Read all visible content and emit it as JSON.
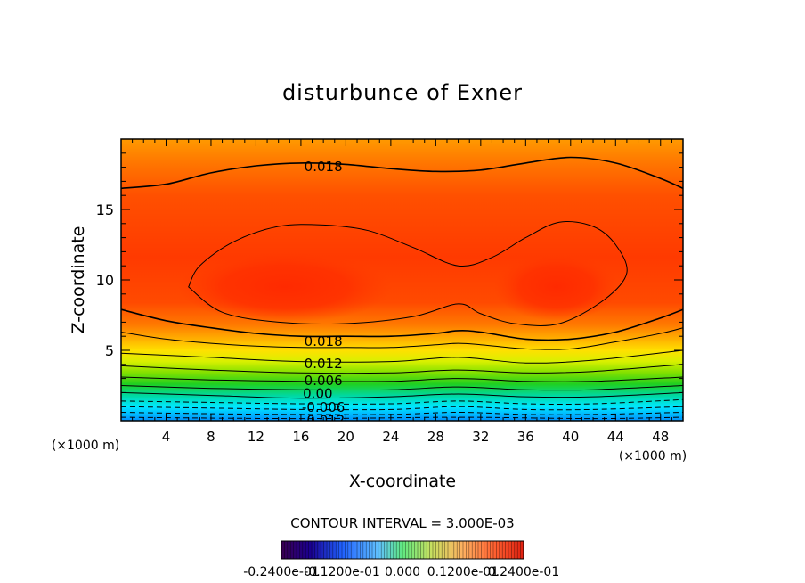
{
  "chart_data": {
    "type": "contour",
    "title": "disturbunce of Exner",
    "xlabel": "X-coordinate",
    "ylabel": "Z-coordinate",
    "x_unit": "(×1000 m)",
    "xlim": [
      0,
      50
    ],
    "ylim": [
      0,
      20
    ],
    "x_ticks": [
      4,
      8,
      12,
      16,
      20,
      24,
      28,
      32,
      36,
      40,
      44,
      48
    ],
    "y_ticks": [
      5,
      10,
      15
    ],
    "contour_interval_label": "CONTOUR INTERVAL = 3.000E-03",
    "contour_interval": 0.003,
    "contour_labels": [
      {
        "text": "0.018",
        "x": 18,
        "y": 18.1
      },
      {
        "text": "0.018",
        "x": 18,
        "y": 5.7
      },
      {
        "text": "0.012",
        "x": 18,
        "y": 4.1
      },
      {
        "text": "0.006",
        "x": 18,
        "y": 2.9
      },
      {
        "text": "0.00",
        "x": 17.5,
        "y": 2.0
      },
      {
        "text": "-0.006",
        "x": 18,
        "y": 1.0
      },
      {
        "text": "-0.012",
        "x": 18,
        "y": 0.1
      }
    ],
    "contour_lines": [
      {
        "level": 0.018,
        "dashed": false,
        "points": [
          [
            0,
            16.5
          ],
          [
            4,
            16.8
          ],
          [
            8,
            17.6
          ],
          [
            12,
            18.1
          ],
          [
            16,
            18.3
          ],
          [
            20,
            18.2
          ],
          [
            24,
            17.9
          ],
          [
            28,
            17.7
          ],
          [
            32,
            17.8
          ],
          [
            36,
            18.3
          ],
          [
            40,
            18.7
          ],
          [
            44,
            18.3
          ],
          [
            48,
            17.2
          ],
          [
            50,
            16.5
          ]
        ]
      },
      {
        "level": 0.018,
        "dashed": false,
        "points": [
          [
            0,
            7.9
          ],
          [
            4,
            7.1
          ],
          [
            8,
            6.6
          ],
          [
            12,
            6.2
          ],
          [
            16,
            6.0
          ],
          [
            20,
            6.0
          ],
          [
            24,
            6.0
          ],
          [
            28,
            6.2
          ],
          [
            30,
            6.4
          ],
          [
            32,
            6.3
          ],
          [
            36,
            5.8
          ],
          [
            40,
            5.8
          ],
          [
            44,
            6.3
          ],
          [
            48,
            7.3
          ],
          [
            50,
            7.9
          ]
        ]
      },
      {
        "level": 0.015,
        "dashed": false,
        "points": [
          [
            0,
            6.3
          ],
          [
            4,
            5.8
          ],
          [
            8,
            5.5
          ],
          [
            12,
            5.3
          ],
          [
            16,
            5.2
          ],
          [
            20,
            5.2
          ],
          [
            24,
            5.2
          ],
          [
            28,
            5.4
          ],
          [
            30,
            5.5
          ],
          [
            32,
            5.4
          ],
          [
            36,
            5.1
          ],
          [
            40,
            5.1
          ],
          [
            44,
            5.6
          ],
          [
            48,
            6.2
          ],
          [
            50,
            6.6
          ]
        ]
      },
      {
        "level": 0.012,
        "dashed": false,
        "points": [
          [
            0,
            4.8
          ],
          [
            8,
            4.5
          ],
          [
            16,
            4.2
          ],
          [
            24,
            4.2
          ],
          [
            30,
            4.5
          ],
          [
            36,
            4.1
          ],
          [
            42,
            4.3
          ],
          [
            50,
            5.0
          ]
        ]
      },
      {
        "level": 0.009,
        "dashed": false,
        "points": [
          [
            0,
            3.9
          ],
          [
            8,
            3.6
          ],
          [
            16,
            3.4
          ],
          [
            24,
            3.4
          ],
          [
            30,
            3.6
          ],
          [
            36,
            3.4
          ],
          [
            42,
            3.5
          ],
          [
            50,
            4.0
          ]
        ]
      },
      {
        "level": 0.006,
        "dashed": false,
        "points": [
          [
            0,
            3.1
          ],
          [
            8,
            2.9
          ],
          [
            16,
            2.8
          ],
          [
            24,
            2.8
          ],
          [
            30,
            3.0
          ],
          [
            36,
            2.8
          ],
          [
            42,
            2.8
          ],
          [
            50,
            3.1
          ]
        ]
      },
      {
        "level": 0.003,
        "dashed": false,
        "points": [
          [
            0,
            2.5
          ],
          [
            8,
            2.3
          ],
          [
            16,
            2.2
          ],
          [
            24,
            2.2
          ],
          [
            30,
            2.4
          ],
          [
            36,
            2.2
          ],
          [
            42,
            2.2
          ],
          [
            50,
            2.5
          ]
        ]
      },
      {
        "level": 0.0,
        "dashed": false,
        "points": [
          [
            0,
            2.0
          ],
          [
            8,
            1.8
          ],
          [
            16,
            1.6
          ],
          [
            24,
            1.7
          ],
          [
            30,
            1.9
          ],
          [
            36,
            1.7
          ],
          [
            42,
            1.7
          ],
          [
            50,
            2.0
          ]
        ]
      },
      {
        "level": -0.003,
        "dashed": true,
        "points": [
          [
            0,
            1.4
          ],
          [
            8,
            1.3
          ],
          [
            16,
            1.2
          ],
          [
            24,
            1.2
          ],
          [
            30,
            1.4
          ],
          [
            36,
            1.2
          ],
          [
            42,
            1.2
          ],
          [
            50,
            1.5
          ]
        ]
      },
      {
        "level": -0.006,
        "dashed": true,
        "points": [
          [
            0,
            1.0
          ],
          [
            8,
            0.9
          ],
          [
            16,
            0.8
          ],
          [
            24,
            0.8
          ],
          [
            30,
            1.0
          ],
          [
            36,
            0.8
          ],
          [
            42,
            0.8
          ],
          [
            50,
            1.0
          ]
        ]
      },
      {
        "level": -0.009,
        "dashed": true,
        "points": [
          [
            0,
            0.6
          ],
          [
            8,
            0.5
          ],
          [
            16,
            0.45
          ],
          [
            24,
            0.45
          ],
          [
            30,
            0.6
          ],
          [
            36,
            0.45
          ],
          [
            42,
            0.45
          ],
          [
            50,
            0.6
          ]
        ]
      },
      {
        "level": -0.012,
        "dashed": true,
        "points": [
          [
            0,
            0.25
          ],
          [
            16,
            0.15
          ],
          [
            30,
            0.25
          ],
          [
            42,
            0.15
          ],
          [
            50,
            0.25
          ]
        ]
      }
    ],
    "inner_contours": [
      {
        "level": 0.021,
        "dashed": false,
        "points": [
          [
            6,
            9.5
          ],
          [
            7,
            11.0
          ],
          [
            10,
            12.7
          ],
          [
            14,
            13.8
          ],
          [
            18,
            13.9
          ],
          [
            22,
            13.5
          ],
          [
            26,
            12.3
          ],
          [
            30,
            11.0
          ],
          [
            33,
            11.6
          ],
          [
            36,
            13.0
          ],
          [
            39,
            14.1
          ],
          [
            42,
            13.8
          ],
          [
            44,
            12.5
          ],
          [
            45,
            10.5
          ],
          [
            43,
            8.6
          ],
          [
            39,
            6.9
          ],
          [
            35,
            6.9
          ],
          [
            32,
            7.6
          ],
          [
            30,
            8.3
          ],
          [
            26,
            7.4
          ],
          [
            20,
            6.9
          ],
          [
            14,
            7.0
          ],
          [
            9,
            7.7
          ],
          [
            6,
            9.5
          ]
        ]
      }
    ],
    "colorbar": {
      "tick_labels": [
        "-0.2400e-01",
        "-0.1200e-01",
        "0.000",
        "0.1200e-01",
        "0.2400e-01"
      ],
      "min": -0.024,
      "max": 0.024
    },
    "colors": {
      "background": "#ffffff",
      "frame": "#000000"
    }
  }
}
